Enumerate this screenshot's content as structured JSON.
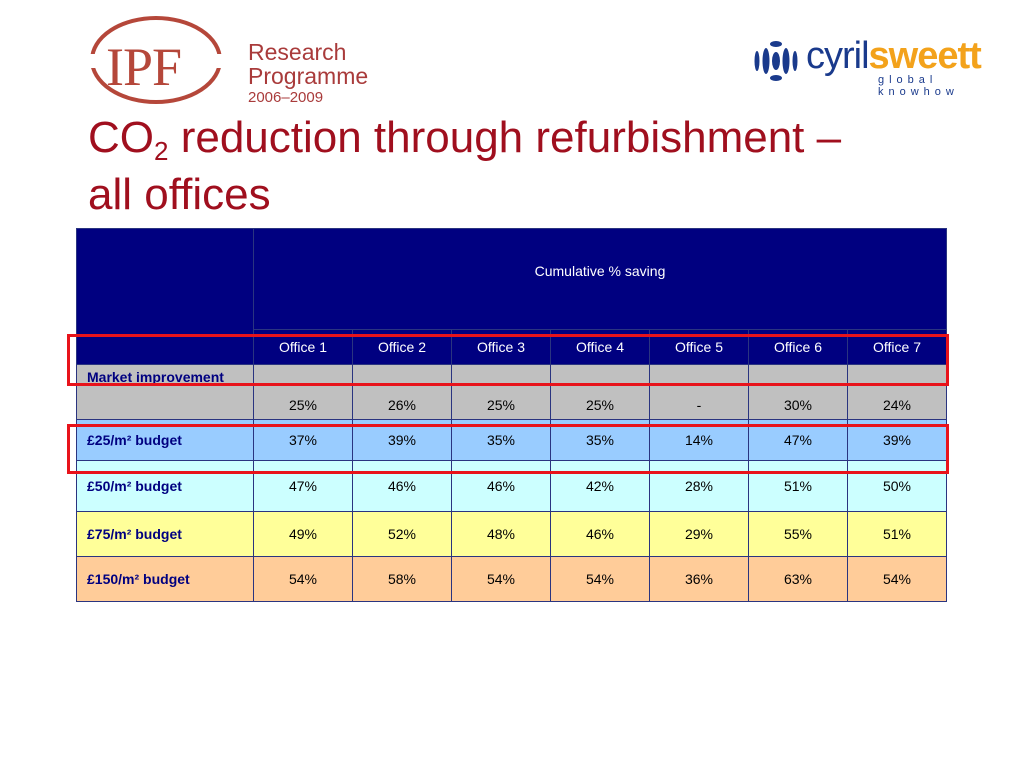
{
  "logos": {
    "ipf": {
      "text": "IPF",
      "programme_line1": "Research",
      "programme_line2": "Programme",
      "years": "2006–2009"
    },
    "cyril_sweett": {
      "word_a": "cyril",
      "word_b": "sweett",
      "tagline": "global knowhow",
      "colors": {
        "blue": "#1a3a8c",
        "orange": "#f3a21b"
      }
    }
  },
  "title": {
    "prefix": "CO",
    "subscript": "2",
    "rest": " reduction through refurbishment –",
    "line2": "all offices"
  },
  "table": {
    "group_header": "Cumulative % saving",
    "columns": [
      "Office 1",
      "Office 2",
      "Office 3",
      "Office 4",
      "Office 5",
      "Office 6",
      "Office 7"
    ],
    "rows": [
      {
        "label": "Market improvement",
        "values": [
          "25%",
          "26%",
          "25%",
          "25%",
          "-",
          "30%",
          "24%"
        ]
      },
      {
        "label": "£25/m² budget",
        "values": [
          "37%",
          "39%",
          "35%",
          "35%",
          "14%",
          "47%",
          "39%"
        ]
      },
      {
        "label": "£50/m² budget",
        "values": [
          "47%",
          "46%",
          "46%",
          "42%",
          "28%",
          "51%",
          "50%"
        ]
      },
      {
        "label": "£75/m² budget",
        "values": [
          "49%",
          "52%",
          "48%",
          "46%",
          "29%",
          "55%",
          "51%"
        ]
      },
      {
        "label": "£150/m² budget",
        "values": [
          "54%",
          "58%",
          "54%",
          "54%",
          "36%",
          "63%",
          "54%"
        ]
      }
    ],
    "highlighted_rows": [
      "Market improvement",
      "£50/m² budget"
    ],
    "colors": {
      "header": "#000080",
      "row1": "#c0c0c0",
      "row2": "#99ccff",
      "row3": "#ccffff",
      "row4": "#ffff99",
      "row5": "#ffcc99",
      "highlight": "#e8131b"
    }
  }
}
